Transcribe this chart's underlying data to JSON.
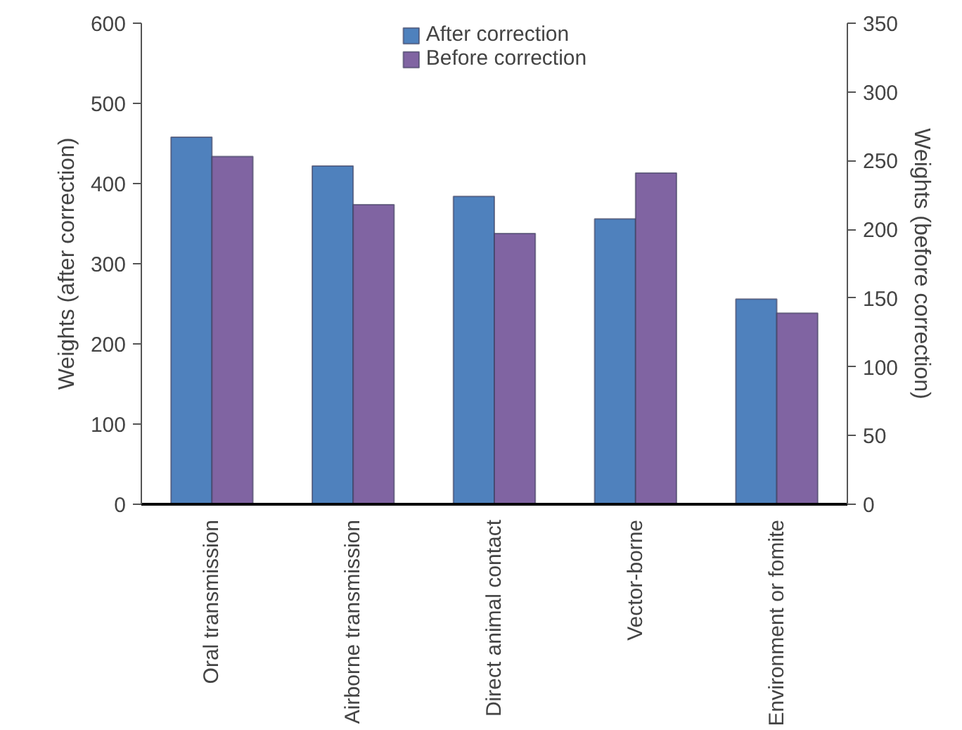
{
  "chart_data": {
    "type": "bar",
    "categories": [
      "Oral transmission",
      "Airborne transmission",
      "Direct animal contact",
      "Vector-borne",
      "Environment or fomite"
    ],
    "ylabel": "Weights (after correction)",
    "y2label": "Weights (before correction)",
    "series": [
      {
        "name": "After correction",
        "color": "#4f81bd",
        "values": [
          458,
          422,
          384,
          356,
          256
        ]
      },
      {
        "name": "Before correction",
        "color": "#8064a2",
        "values": [
          253,
          218,
          197,
          241,
          139
        ],
        "axis": "y2"
      }
    ],
    "ylim": [
      0,
      600
    ],
    "yticks": [
      0,
      100,
      200,
      300,
      400,
      500,
      600
    ],
    "y2lim": [
      0,
      350
    ],
    "y2ticks": [
      0,
      50,
      100,
      150,
      200,
      250,
      300,
      350
    ],
    "grid": false,
    "legend": "top"
  }
}
